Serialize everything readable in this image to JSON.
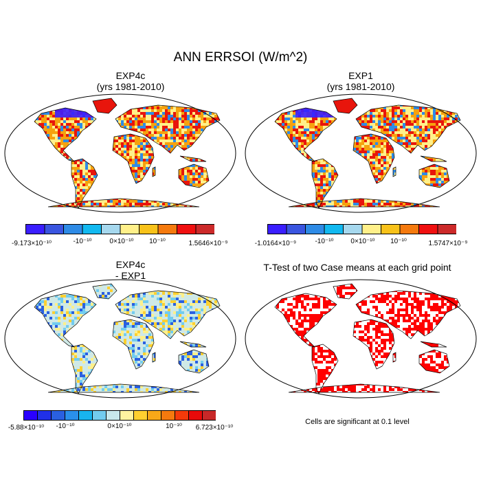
{
  "main_title": "ANN ERRSOI (W/m^2)",
  "panels": [
    {
      "id": "exp4c",
      "title_line1": "EXP4c",
      "title_line2": "(yrs 1981-2010)",
      "colorbar": {
        "colors": [
          "#3a1eff",
          "#3a55e0",
          "#2e8be6",
          "#12b9f0",
          "#a6d8ee",
          "#fff08a",
          "#f8c21a",
          "#f57a0e",
          "#f01010",
          "#cc2a2a"
        ],
        "labels": [
          "-9.173×10⁻¹⁰",
          "-10⁻¹⁰",
          "0×10⁻¹⁰",
          "10⁻¹⁰",
          "1.5646×10⁻⁹"
        ]
      }
    },
    {
      "id": "exp1",
      "title_line1": "EXP1",
      "title_line2": "(yrs 1981-2010)",
      "colorbar": {
        "colors": [
          "#3a1eff",
          "#3a55e0",
          "#2e8be6",
          "#12b9f0",
          "#a6d8ee",
          "#fff08a",
          "#f8c21a",
          "#f57a0e",
          "#f01010",
          "#cc2a2a"
        ],
        "labels": [
          "-1.0164×10⁻⁹",
          "-10⁻¹⁰",
          "0×10⁻¹⁰",
          "10⁻¹⁰",
          "1.5747×10⁻⁹"
        ]
      }
    },
    {
      "id": "diff",
      "title_line1": "EXP4c",
      "title_line2": "- EXP1",
      "colorbar": {
        "colors": [
          "#2a00ff",
          "#2030e8",
          "#2a60e0",
          "#2a90ea",
          "#18b4ee",
          "#72ccef",
          "#c8e8ec",
          "#fff3a0",
          "#ffd030",
          "#f8a818",
          "#f57a0e",
          "#f53a0a",
          "#e80a0a",
          "#c82828"
        ],
        "labels": [
          "-5.88×10⁻¹⁰",
          "-10⁻¹⁰",
          "0×10⁻¹⁰",
          "10⁻¹⁰",
          "6.723×10⁻¹⁰"
        ]
      }
    },
    {
      "id": "ttest",
      "title_line1": "T-Test of two Case means at each grid point",
      "note": "Cells are significant at 0.1 level"
    }
  ],
  "map_colors": {
    "outline": "#000000",
    "ocean": "#ffffff",
    "warm_land": "#f6a20e",
    "hot_land": "#e8150c",
    "cold_land": "#2e8be6",
    "very_cold_land": "#3a1eff",
    "pale_land": "#fff08a",
    "diff_land": "#cfe9e6",
    "significant": "#ff0000"
  }
}
